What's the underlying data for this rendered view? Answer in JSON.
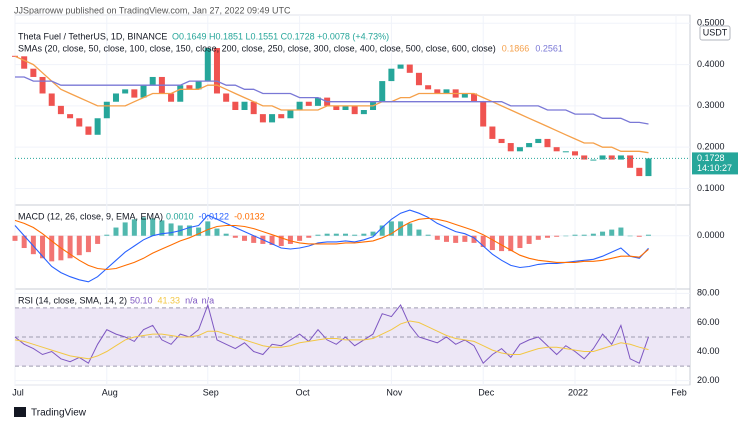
{
  "header": "JJSparroww published on TradingView.com, Jan 27, 2022 09:49 UTC",
  "footer": "TradingView",
  "chart_data": {
    "type": "candlestick",
    "title": "Theta Fuel / TetherUS, 1D, BINANCE",
    "ohlc": "O0.1649 H0.1851 L0.1551 C0.1728 +0.0078 (+4.73%)",
    "currency": "USDT",
    "price_label": "0.1728",
    "countdown": "14:10:27",
    "up_color": "#26a69a",
    "down_color": "#ef5350",
    "categories": [
      "Jul",
      null,
      null,
      null,
      null,
      null,
      null,
      null,
      null,
      null,
      "Aug",
      null,
      null,
      null,
      null,
      null,
      null,
      null,
      null,
      null,
      null,
      "Sep",
      null,
      null,
      null,
      null,
      null,
      null,
      null,
      null,
      null,
      "Oct",
      null,
      null,
      null,
      null,
      null,
      null,
      null,
      null,
      null,
      "Nov",
      null,
      null,
      null,
      null,
      null,
      null,
      null,
      null,
      null,
      "Dec",
      null,
      null,
      null,
      null,
      null,
      null,
      null,
      null,
      null,
      "2022",
      null,
      null,
      null,
      null,
      null,
      null,
      null,
      null,
      null,
      null,
      "Feb"
    ],
    "values": [
      0.42,
      0.39,
      0.37,
      0.33,
      0.3,
      0.28,
      0.27,
      0.25,
      0.23,
      0.27,
      0.31,
      0.33,
      0.34,
      0.32,
      0.35,
      0.37,
      0.33,
      0.31,
      0.35,
      0.34,
      0.36,
      0.44,
      0.33,
      0.31,
      0.29,
      0.31,
      0.28,
      0.26,
      0.28,
      0.27,
      0.29,
      0.31,
      0.3,
      0.32,
      0.3,
      0.29,
      0.3,
      0.28,
      0.29,
      0.31,
      0.36,
      0.39,
      0.4,
      0.38,
      0.35,
      0.34,
      0.33,
      0.34,
      0.32,
      0.33,
      0.31,
      0.25,
      0.22,
      0.21,
      0.19,
      0.2,
      0.21,
      0.22,
      0.2,
      0.19,
      0.19,
      0.18,
      0.17,
      0.17,
      0.18,
      0.17,
      0.18,
      0.15,
      0.13,
      0.1728,
      null,
      null,
      null
    ],
    "ylim": [
      0.06,
      0.52
    ],
    "yticks": [
      {
        "value": 0.1,
        "label": "0.1000"
      },
      {
        "value": 0.2,
        "label": "0.2000"
      },
      {
        "value": 0.3,
        "label": "0.3000"
      },
      {
        "value": 0.4,
        "label": "0.4000"
      },
      {
        "value": 0.5,
        "label": "0.5000"
      }
    ],
    "overlay_label": "SMAs (20, close, 50, close, 100, close, 150, close, 200, close, 250, close, 300, close, 400, close, 500, close, 600, close)",
    "overlays": [
      {
        "color": "#f5a04a",
        "value_label": "0.1866",
        "values": [
          0.42,
          0.41,
          0.4,
          0.38,
          0.36,
          0.34,
          0.33,
          0.32,
          0.31,
          0.3,
          0.3,
          0.3,
          0.3,
          0.31,
          0.32,
          0.33,
          0.33,
          0.33,
          0.34,
          0.34,
          0.34,
          0.35,
          0.35,
          0.34,
          0.33,
          0.32,
          0.31,
          0.3,
          0.3,
          0.29,
          0.29,
          0.29,
          0.29,
          0.29,
          0.3,
          0.3,
          0.3,
          0.3,
          0.3,
          0.3,
          0.31,
          0.31,
          0.32,
          0.32,
          0.33,
          0.33,
          0.33,
          0.33,
          0.33,
          0.33,
          0.33,
          0.32,
          0.31,
          0.3,
          0.29,
          0.28,
          0.27,
          0.26,
          0.25,
          0.24,
          0.23,
          0.22,
          0.21,
          0.21,
          0.2,
          0.2,
          0.19,
          0.19,
          0.19,
          0.1866,
          null,
          null,
          null
        ]
      },
      {
        "color": "#7a78d6",
        "value_label": "0.2561",
        "values": [
          0.37,
          0.37,
          0.36,
          0.36,
          0.36,
          0.35,
          0.35,
          0.35,
          0.35,
          0.35,
          0.35,
          0.35,
          0.35,
          0.35,
          0.35,
          0.35,
          0.35,
          0.35,
          0.35,
          0.36,
          0.36,
          0.36,
          0.36,
          0.35,
          0.35,
          0.34,
          0.34,
          0.33,
          0.33,
          0.33,
          0.33,
          0.32,
          0.32,
          0.32,
          0.31,
          0.31,
          0.31,
          0.31,
          0.31,
          0.31,
          0.31,
          0.31,
          0.31,
          0.31,
          0.31,
          0.31,
          0.31,
          0.31,
          0.31,
          0.31,
          0.31,
          0.31,
          0.31,
          0.31,
          0.3,
          0.3,
          0.3,
          0.3,
          0.29,
          0.29,
          0.29,
          0.28,
          0.28,
          0.28,
          0.27,
          0.27,
          0.27,
          0.26,
          0.26,
          0.2561,
          null,
          null,
          null
        ]
      }
    ],
    "macd": {
      "label": "MACD (12, 26, close, 9, EMA, EMA)",
      "ylim": [
        -0.052,
        0.03
      ],
      "yticks": [
        {
          "value": 0,
          "label": "0.0000"
        }
      ],
      "histogram": {
        "up_color": "#26a69a",
        "down_color": "#ef5350",
        "value_label": "0.0010",
        "values": [
          -0.005,
          -0.012,
          -0.018,
          -0.022,
          -0.025,
          -0.024,
          -0.022,
          -0.019,
          -0.016,
          -0.008,
          0.001,
          0.008,
          0.013,
          0.016,
          0.018,
          0.017,
          0.015,
          0.012,
          0.01,
          0.01,
          0.008,
          0.014,
          0.007,
          0.002,
          -0.002,
          -0.005,
          -0.007,
          -0.008,
          -0.009,
          -0.01,
          -0.008,
          -0.005,
          -0.002,
          0.001,
          0.002,
          0.002,
          0.002,
          0.001,
          0.002,
          0.004,
          0.01,
          0.014,
          0.014,
          0.012,
          0.006,
          0.001,
          -0.004,
          -0.006,
          -0.007,
          -0.006,
          -0.007,
          -0.011,
          -0.014,
          -0.015,
          -0.015,
          -0.012,
          -0.008,
          -0.004,
          -0.002,
          -0.001,
          0.0,
          0.001,
          0.001,
          0.002,
          0.004,
          0.006,
          0.008,
          0.0,
          -0.001,
          0.001,
          null,
          null,
          null
        ]
      },
      "lines": [
        {
          "color": "#2962ff",
          "value_label": "-0.0122",
          "values": [
            0.01,
            0.0,
            -0.01,
            -0.02,
            -0.03,
            -0.036,
            -0.04,
            -0.043,
            -0.045,
            -0.04,
            -0.032,
            -0.024,
            -0.016,
            -0.01,
            -0.004,
            0.0,
            0.002,
            0.003,
            0.005,
            0.008,
            0.01,
            0.02,
            0.016,
            0.012,
            0.008,
            0.004,
            0.0,
            -0.004,
            -0.008,
            -0.012,
            -0.013,
            -0.012,
            -0.01,
            -0.007,
            -0.006,
            -0.006,
            -0.005,
            -0.006,
            -0.004,
            -0.001,
            0.008,
            0.016,
            0.022,
            0.025,
            0.022,
            0.018,
            0.012,
            0.008,
            0.004,
            0.002,
            -0.002,
            -0.01,
            -0.018,
            -0.024,
            -0.029,
            -0.031,
            -0.03,
            -0.028,
            -0.027,
            -0.027,
            -0.026,
            -0.025,
            -0.024,
            -0.023,
            -0.02,
            -0.016,
            -0.012,
            -0.02,
            -0.022,
            -0.0122,
            null,
            null,
            null
          ]
        },
        {
          "color": "#ff6d00",
          "value_label": "-0.0132",
          "values": [
            0.015,
            0.012,
            0.008,
            0.002,
            -0.005,
            -0.012,
            -0.018,
            -0.024,
            -0.029,
            -0.032,
            -0.033,
            -0.032,
            -0.029,
            -0.026,
            -0.022,
            -0.017,
            -0.013,
            -0.009,
            -0.005,
            -0.002,
            0.002,
            0.006,
            0.009,
            0.01,
            0.01,
            0.009,
            0.007,
            0.004,
            0.001,
            -0.002,
            -0.005,
            -0.007,
            -0.008,
            -0.008,
            -0.008,
            -0.008,
            -0.007,
            -0.007,
            -0.006,
            -0.005,
            -0.002,
            0.002,
            0.008,
            0.013,
            0.016,
            0.017,
            0.016,
            0.014,
            0.011,
            0.008,
            0.005,
            0.001,
            -0.004,
            -0.009,
            -0.014,
            -0.019,
            -0.022,
            -0.024,
            -0.025,
            -0.026,
            -0.026,
            -0.026,
            -0.025,
            -0.025,
            -0.024,
            -0.022,
            -0.02,
            -0.02,
            -0.021,
            -0.0132,
            null,
            null,
            null
          ]
        }
      ]
    },
    "rsi": {
      "label": "RSI (14, close, SMA, 14, 2)",
      "ylim": [
        17,
        83
      ],
      "yticks": [
        {
          "value": 80,
          "label": "80.00"
        },
        {
          "value": 60,
          "label": "60.00"
        },
        {
          "value": 40,
          "label": "40.00"
        },
        {
          "value": 20,
          "label": "20.00"
        }
      ],
      "bands": [
        70,
        50,
        30
      ],
      "band_color": "#ede7f6",
      "na_labels": [
        "n/a",
        "n/a"
      ],
      "lines": [
        {
          "color": "#7e57c2",
          "value_label": "50.10",
          "values": [
            50,
            45,
            42,
            38,
            40,
            35,
            33,
            36,
            32,
            45,
            55,
            52,
            50,
            47,
            55,
            58,
            48,
            45,
            52,
            50,
            55,
            72,
            48,
            45,
            42,
            46,
            40,
            38,
            45,
            44,
            48,
            52,
            47,
            55,
            48,
            45,
            50,
            44,
            48,
            52,
            66,
            64,
            72,
            58,
            50,
            48,
            46,
            50,
            45,
            48,
            44,
            32,
            38,
            42,
            36,
            45,
            48,
            50,
            44,
            38,
            44,
            40,
            35,
            42,
            52,
            45,
            58,
            35,
            32,
            50.1,
            null,
            null,
            null
          ]
        },
        {
          "color": "#f2c744",
          "value_label": "41.33",
          "values": [
            48,
            47,
            45,
            43,
            41,
            39,
            37,
            36,
            35,
            37,
            40,
            44,
            48,
            50,
            51,
            52,
            52,
            51,
            50,
            50,
            51,
            54,
            54,
            52,
            50,
            48,
            46,
            44,
            43,
            43,
            44,
            46,
            47,
            48,
            49,
            49,
            48,
            48,
            48,
            49,
            52,
            55,
            59,
            61,
            60,
            57,
            54,
            51,
            49,
            48,
            47,
            44,
            41,
            39,
            38,
            38,
            40,
            42,
            43,
            43,
            42,
            41,
            40,
            40,
            42,
            44,
            46,
            45,
            43,
            41.33,
            null,
            null,
            null
          ]
        }
      ]
    }
  }
}
